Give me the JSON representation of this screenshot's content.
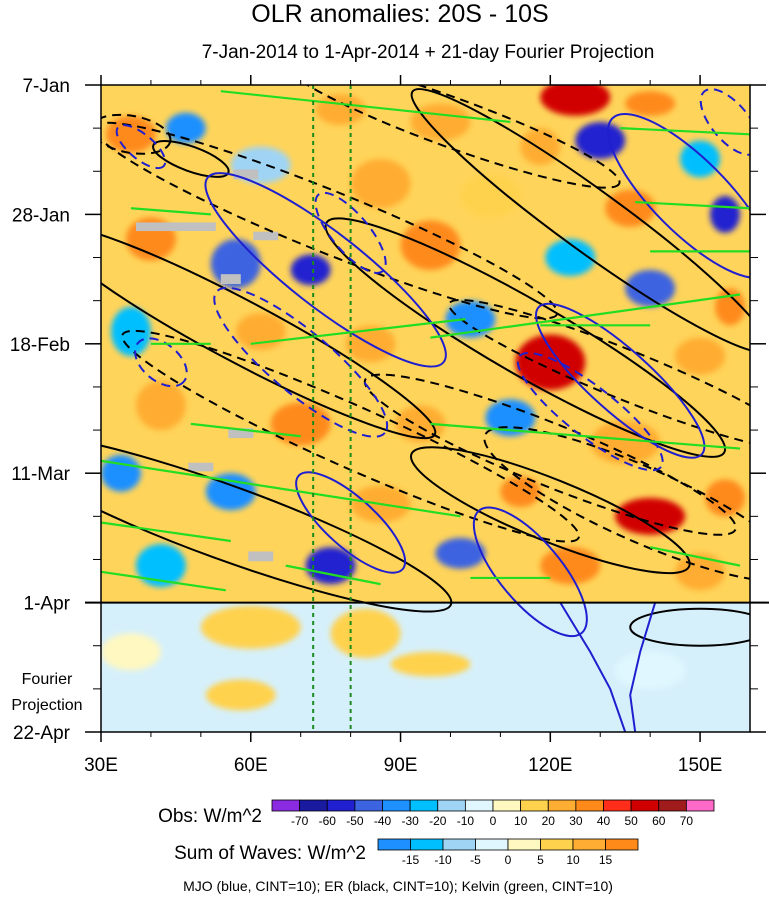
{
  "chart_data": {
    "type": "heatmap",
    "title": "OLR anomalies: 20S - 10S",
    "subtitle": "7-Jan-2014 to 1-Apr-2014 + 21-day Fourier Projection",
    "x_axis": {
      "label": "",
      "range": [
        30,
        160
      ],
      "ticks": [
        {
          "value": 30,
          "label": "30E"
        },
        {
          "value": 60,
          "label": "60E"
        },
        {
          "value": 90,
          "label": "90E"
        },
        {
          "value": 120,
          "label": "120E"
        },
        {
          "value": 150,
          "label": "150E"
        }
      ]
    },
    "y_axis": {
      "label": "",
      "range_days": [
        0,
        105
      ],
      "reversed": true,
      "ticks": [
        {
          "day": 0,
          "label": "7-Jan"
        },
        {
          "day": 21,
          "label": "28-Jan"
        },
        {
          "day": 42,
          "label": "18-Feb"
        },
        {
          "day": 63,
          "label": "11-Mar"
        },
        {
          "day": 84,
          "label": "1-Apr"
        },
        {
          "day": 105,
          "label": "22-Apr"
        }
      ]
    },
    "projection_start_day": 84,
    "projection_label": [
      "Fourier",
      "Projection"
    ],
    "reference_lines_lon": [
      72.5,
      80
    ],
    "obs_colorbar": {
      "title": "Obs: W/m^2",
      "levels": [
        -70,
        -60,
        -50,
        -40,
        -30,
        -20,
        -10,
        0,
        10,
        20,
        30,
        40,
        50,
        60,
        70
      ],
      "colors": [
        "#8a2be2",
        "#1a1aa0",
        "#2020d0",
        "#3c64e0",
        "#1e90ff",
        "#00bfff",
        "#9fd4f5",
        "#e0f7ff",
        "#fff8c0",
        "#ffd24d",
        "#ffad33",
        "#ff8a1a",
        "#ff2d1a",
        "#d10000",
        "#a01b1b",
        "#ff69c8"
      ]
    },
    "waves_colorbar": {
      "title": "Sum of Waves: W/m^2",
      "levels": [
        -15,
        -10,
        -5,
        0,
        5,
        10,
        15
      ],
      "colors": [
        "#1e90ff",
        "#00bfff",
        "#9fd4f5",
        "#e0f7ff",
        "#fff8c0",
        "#ffd24d",
        "#ffad33",
        "#ff8a1a"
      ]
    },
    "contour_legend": "MJO (blue, CINT=10); ER (black, CINT=10); Kelvin (green, CINT=10)",
    "series": [
      {
        "name": "MJO",
        "color": "#1f1fd0",
        "cint": 10
      },
      {
        "name": "ER",
        "color": "#000000",
        "cint": 10
      },
      {
        "name": "Kelvin",
        "color": "#22dd22",
        "cint": 10
      }
    ],
    "anomaly_cells": [
      {
        "lon": 125,
        "day": 2,
        "w": 14,
        "h": 6,
        "v": 50
      },
      {
        "lon": 140,
        "day": 3,
        "w": 10,
        "h": 4,
        "v": 30
      },
      {
        "lon": 36,
        "day": 8,
        "w": 10,
        "h": 6,
        "v": 30
      },
      {
        "lon": 47,
        "day": 7,
        "w": 8,
        "h": 5,
        "v": -40
      },
      {
        "lon": 78,
        "day": 4,
        "w": 10,
        "h": 5,
        "v": 20
      },
      {
        "lon": 98,
        "day": 6,
        "w": 12,
        "h": 6,
        "v": 20
      },
      {
        "lon": 118,
        "day": 10,
        "w": 8,
        "h": 6,
        "v": 20
      },
      {
        "lon": 130,
        "day": 9,
        "w": 10,
        "h": 6,
        "v": -60
      },
      {
        "lon": 150,
        "day": 12,
        "w": 8,
        "h": 6,
        "v": -30
      },
      {
        "lon": 62,
        "day": 13,
        "w": 12,
        "h": 6,
        "v": -20
      },
      {
        "lon": 86,
        "day": 16,
        "w": 12,
        "h": 8,
        "v": 20
      },
      {
        "lon": 108,
        "day": 18,
        "w": 12,
        "h": 7,
        "v": 10
      },
      {
        "lon": 136,
        "day": 20,
        "w": 10,
        "h": 6,
        "v": 30
      },
      {
        "lon": 155,
        "day": 21,
        "w": 6,
        "h": 6,
        "v": -60
      },
      {
        "lon": 40,
        "day": 25,
        "w": 10,
        "h": 7,
        "v": 30
      },
      {
        "lon": 57,
        "day": 29,
        "w": 10,
        "h": 8,
        "v": -50
      },
      {
        "lon": 72,
        "day": 30,
        "w": 8,
        "h": 5,
        "v": -60
      },
      {
        "lon": 96,
        "day": 26,
        "w": 12,
        "h": 8,
        "v": 30
      },
      {
        "lon": 124,
        "day": 28,
        "w": 10,
        "h": 6,
        "v": -30
      },
      {
        "lon": 140,
        "day": 33,
        "w": 10,
        "h": 6,
        "v": -50
      },
      {
        "lon": 156,
        "day": 36,
        "w": 6,
        "h": 6,
        "v": 30
      },
      {
        "lon": 36,
        "day": 40,
        "w": 8,
        "h": 8,
        "v": -30
      },
      {
        "lon": 62,
        "day": 40,
        "w": 10,
        "h": 6,
        "v": 20
      },
      {
        "lon": 84,
        "day": 42,
        "w": 10,
        "h": 6,
        "v": 20
      },
      {
        "lon": 104,
        "day": 38,
        "w": 10,
        "h": 6,
        "v": -40
      },
      {
        "lon": 120,
        "day": 45,
        "w": 14,
        "h": 9,
        "v": 50
      },
      {
        "lon": 150,
        "day": 44,
        "w": 10,
        "h": 6,
        "v": 20
      },
      {
        "lon": 42,
        "day": 52,
        "w": 10,
        "h": 8,
        "v": 20
      },
      {
        "lon": 70,
        "day": 55,
        "w": 12,
        "h": 7,
        "v": 30
      },
      {
        "lon": 94,
        "day": 55,
        "w": 10,
        "h": 6,
        "v": 20
      },
      {
        "lon": 112,
        "day": 54,
        "w": 10,
        "h": 6,
        "v": -40
      },
      {
        "lon": 135,
        "day": 58,
        "w": 14,
        "h": 7,
        "v": 20
      },
      {
        "lon": 34,
        "day": 63,
        "w": 8,
        "h": 6,
        "v": -40
      },
      {
        "lon": 56,
        "day": 66,
        "w": 10,
        "h": 6,
        "v": -40
      },
      {
        "lon": 86,
        "day": 68,
        "w": 12,
        "h": 6,
        "v": 20
      },
      {
        "lon": 114,
        "day": 66,
        "w": 8,
        "h": 5,
        "v": 30
      },
      {
        "lon": 140,
        "day": 70,
        "w": 14,
        "h": 6,
        "v": 50
      },
      {
        "lon": 155,
        "day": 67,
        "w": 8,
        "h": 6,
        "v": 30
      },
      {
        "lon": 42,
        "day": 78,
        "w": 10,
        "h": 7,
        "v": -30
      },
      {
        "lon": 76,
        "day": 78,
        "w": 10,
        "h": 6,
        "v": -60
      },
      {
        "lon": 102,
        "day": 76,
        "w": 10,
        "h": 5,
        "v": -50
      },
      {
        "lon": 124,
        "day": 78,
        "w": 12,
        "h": 6,
        "v": 30
      },
      {
        "lon": 150,
        "day": 79,
        "w": 10,
        "h": 6,
        "v": 20
      }
    ],
    "projection_cells": [
      {
        "lon": 60,
        "day": 88,
        "w": 20,
        "h": 7,
        "v": 5
      },
      {
        "lon": 83,
        "day": 89,
        "w": 14,
        "h": 8,
        "v": 5
      },
      {
        "lon": 96,
        "day": 94,
        "w": 16,
        "h": 4,
        "v": 5
      },
      {
        "lon": 58,
        "day": 99,
        "w": 14,
        "h": 5,
        "v": 5
      },
      {
        "lon": 140,
        "day": 95,
        "w": 14,
        "h": 6,
        "v": -5
      },
      {
        "lon": 36,
        "day": 92,
        "w": 12,
        "h": 6,
        "v": 0
      }
    ],
    "missing_cells": [
      {
        "lon": 59,
        "day": 14.5,
        "w": 5,
        "h": 1.6
      },
      {
        "lon": 45,
        "day": 23,
        "w": 16,
        "h": 1.4
      },
      {
        "lon": 63,
        "day": 24.5,
        "w": 5,
        "h": 1.4
      },
      {
        "lon": 56,
        "day": 31.5,
        "w": 4,
        "h": 1.6
      },
      {
        "lon": 58,
        "day": 56.5,
        "w": 5,
        "h": 1.6
      },
      {
        "lon": 50,
        "day": 62,
        "w": 5,
        "h": 1.4
      },
      {
        "lon": 62,
        "day": 76.5,
        "w": 5,
        "h": 1.6
      }
    ],
    "mjo_contours": [
      {
        "lon": 75,
        "day": 30,
        "rx": 30,
        "ry": 6,
        "rot": 38,
        "dash": false
      },
      {
        "lon": 70,
        "day": 45,
        "rx": 22,
        "ry": 5,
        "rot": 40,
        "dash": true
      },
      {
        "lon": 80,
        "day": 24,
        "rx": 10,
        "ry": 3,
        "rot": 50,
        "dash": true
      },
      {
        "lon": 128,
        "day": 53,
        "rx": 18,
        "ry": 4,
        "rot": 38,
        "dash": true
      },
      {
        "lon": 134,
        "day": 48,
        "rx": 22,
        "ry": 5,
        "rot": 42,
        "dash": false
      },
      {
        "lon": 148,
        "day": 18,
        "rx": 22,
        "ry": 6,
        "rot": 45,
        "dash": false
      },
      {
        "lon": 156,
        "day": 6,
        "rx": 8,
        "ry": 3,
        "rot": 50,
        "dash": true
      },
      {
        "lon": 80,
        "day": 71,
        "rx": 14,
        "ry": 4,
        "rot": 42,
        "dash": false
      },
      {
        "lon": 116,
        "day": 79,
        "rx": 16,
        "ry": 5,
        "rot": 50,
        "dash": false
      },
      {
        "lon": 38,
        "day": 10,
        "rx": 6,
        "ry": 2,
        "rot": 40,
        "dash": true
      },
      {
        "lon": 42,
        "day": 45,
        "rx": 6,
        "ry": 3,
        "rot": 40,
        "dash": true
      }
    ],
    "mjo_lines": [
      [
        [
          122,
          84
        ],
        [
          128,
          92
        ],
        [
          132,
          98
        ],
        [
          135,
          105
        ]
      ],
      [
        [
          141,
          84
        ],
        [
          138,
          92
        ],
        [
          136,
          99
        ],
        [
          137,
          105
        ]
      ]
    ],
    "er_contours": [
      {
        "lon": 58,
        "day": 40,
        "rx": 44,
        "ry": 5,
        "rot": 28,
        "dash": false
      },
      {
        "lon": 55,
        "day": 71,
        "rx": 48,
        "ry": 6,
        "rot": 20,
        "dash": false
      },
      {
        "lon": 75,
        "day": 22,
        "rx": 50,
        "ry": 5,
        "rot": 22,
        "dash": true
      },
      {
        "lon": 80,
        "day": 57,
        "rx": 50,
        "ry": 5,
        "rot": 24,
        "dash": true
      },
      {
        "lon": 115,
        "day": 41,
        "rx": 46,
        "ry": 6,
        "rot": 30,
        "dash": false
      },
      {
        "lon": 128,
        "day": 22,
        "rx": 44,
        "ry": 5,
        "rot": 36,
        "dash": false
      },
      {
        "lon": 100,
        "day": 6,
        "rx": 36,
        "ry": 4,
        "rot": 20,
        "dash": true
      },
      {
        "lon": 120,
        "day": 60,
        "rx": 40,
        "ry": 5,
        "rot": 22,
        "dash": true
      },
      {
        "lon": 138,
        "day": 68,
        "rx": 34,
        "ry": 6,
        "rot": 24,
        "dash": true
      },
      {
        "lon": 135,
        "day": 47,
        "rx": 38,
        "ry": 4,
        "rot": 22,
        "dash": true
      },
      {
        "lon": 120,
        "day": 69,
        "rx": 30,
        "ry": 5,
        "rot": 22,
        "dash": false
      },
      {
        "lon": 150,
        "day": 88,
        "rx": 14,
        "ry": 3,
        "rot": 0,
        "dash": false
      },
      {
        "lon": 36,
        "day": 8,
        "rx": 8,
        "ry": 3,
        "rot": 10,
        "dash": true
      },
      {
        "lon": 48,
        "day": 12,
        "rx": 8,
        "ry": 2,
        "rot": 20,
        "dash": false
      }
    ],
    "kelvin_segments": [
      [
        [
          54,
          1
        ],
        [
          112,
          6
        ]
      ],
      [
        [
          36,
          20
        ],
        [
          52,
          21
        ]
      ],
      [
        [
          60,
          42
        ],
        [
          103,
          38
        ]
      ],
      [
        [
          40,
          42
        ],
        [
          52,
          42
        ]
      ],
      [
        [
          48,
          55
        ],
        [
          70,
          57
        ]
      ],
      [
        [
          30,
          61
        ],
        [
          102,
          70
        ]
      ],
      [
        [
          30,
          71
        ],
        [
          56,
          74
        ]
      ],
      [
        [
          30,
          79
        ],
        [
          55,
          82
        ]
      ],
      [
        [
          67,
          78
        ],
        [
          86,
          81
        ]
      ],
      [
        [
          96,
          41
        ],
        [
          158,
          34
        ]
      ],
      [
        [
          96,
          55
        ],
        [
          158,
          59
        ]
      ],
      [
        [
          134,
          7
        ],
        [
          160,
          8
        ]
      ],
      [
        [
          137,
          19
        ],
        [
          160,
          20
        ]
      ],
      [
        [
          104,
          80
        ],
        [
          120,
          80
        ]
      ],
      [
        [
          140,
          75
        ],
        [
          158,
          78
        ]
      ],
      [
        [
          118,
          39
        ],
        [
          140,
          39
        ]
      ],
      [
        [
          140,
          27
        ],
        [
          160,
          27
        ]
      ]
    ]
  }
}
